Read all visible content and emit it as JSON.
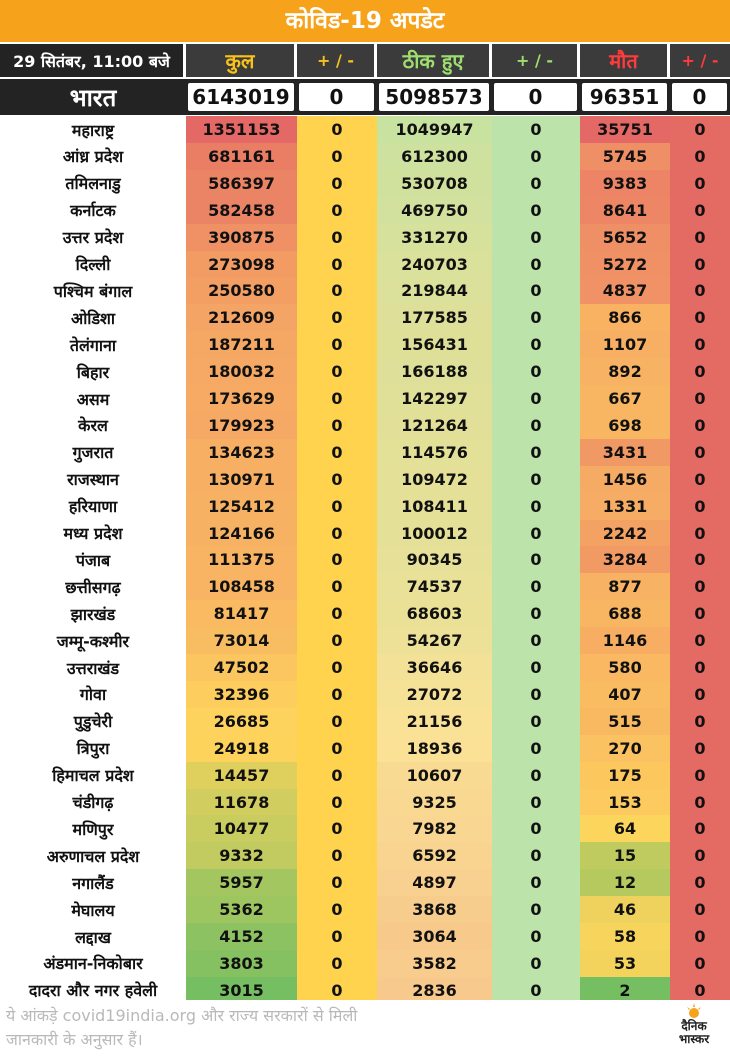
{
  "title": "कोविड-19 अपडेट",
  "header": {
    "date": "29 सितंबर, 11:00 बजे",
    "total": "कुल",
    "total_delta": "+ / -",
    "recovered": "ठीक हुए",
    "recovered_delta": "+ / -",
    "deaths": "मौत",
    "deaths_delta": "+ / -"
  },
  "india": {
    "name": "भारत",
    "total": "6143019",
    "total_delta": "0",
    "recovered": "5098573",
    "recovered_delta": "0",
    "deaths": "96351",
    "deaths_delta": "0"
  },
  "states": [
    {
      "name": "महाराष्ट्र",
      "total": "1351153",
      "total_delta": "0",
      "recovered": "1049947",
      "recovered_delta": "0",
      "deaths": "35751",
      "deaths_delta": "0"
    },
    {
      "name": "आंध्र प्रदेश",
      "total": "681161",
      "total_delta": "0",
      "recovered": "612300",
      "recovered_delta": "0",
      "deaths": "5745",
      "deaths_delta": "0"
    },
    {
      "name": "तमिलनाडु",
      "total": "586397",
      "total_delta": "0",
      "recovered": "530708",
      "recovered_delta": "0",
      "deaths": "9383",
      "deaths_delta": "0"
    },
    {
      "name": "कर्नाटक",
      "total": "582458",
      "total_delta": "0",
      "recovered": "469750",
      "recovered_delta": "0",
      "deaths": "8641",
      "deaths_delta": "0"
    },
    {
      "name": "उत्तर प्रदेश",
      "total": "390875",
      "total_delta": "0",
      "recovered": "331270",
      "recovered_delta": "0",
      "deaths": "5652",
      "deaths_delta": "0"
    },
    {
      "name": "दिल्ली",
      "total": "273098",
      "total_delta": "0",
      "recovered": "240703",
      "recovered_delta": "0",
      "deaths": "5272",
      "deaths_delta": "0"
    },
    {
      "name": "पश्चिम बंगाल",
      "total": "250580",
      "total_delta": "0",
      "recovered": "219844",
      "recovered_delta": "0",
      "deaths": "4837",
      "deaths_delta": "0"
    },
    {
      "name": "ओडिशा",
      "total": "212609",
      "total_delta": "0",
      "recovered": "177585",
      "recovered_delta": "0",
      "deaths": "866",
      "deaths_delta": "0"
    },
    {
      "name": "तेलंगाना",
      "total": "187211",
      "total_delta": "0",
      "recovered": "156431",
      "recovered_delta": "0",
      "deaths": "1107",
      "deaths_delta": "0"
    },
    {
      "name": "बिहार",
      "total": "180032",
      "total_delta": "0",
      "recovered": "166188",
      "recovered_delta": "0",
      "deaths": "892",
      "deaths_delta": "0"
    },
    {
      "name": "असम",
      "total": "173629",
      "total_delta": "0",
      "recovered": "142297",
      "recovered_delta": "0",
      "deaths": "667",
      "deaths_delta": "0"
    },
    {
      "name": "केरल",
      "total": "179923",
      "total_delta": "0",
      "recovered": "121264",
      "recovered_delta": "0",
      "deaths": "698",
      "deaths_delta": "0"
    },
    {
      "name": "गुजरात",
      "total": "134623",
      "total_delta": "0",
      "recovered": "114576",
      "recovered_delta": "0",
      "deaths": "3431",
      "deaths_delta": "0"
    },
    {
      "name": "राजस्थान",
      "total": "130971",
      "total_delta": "0",
      "recovered": "109472",
      "recovered_delta": "0",
      "deaths": "1456",
      "deaths_delta": "0"
    },
    {
      "name": "हरियाणा",
      "total": "125412",
      "total_delta": "0",
      "recovered": "108411",
      "recovered_delta": "0",
      "deaths": "1331",
      "deaths_delta": "0"
    },
    {
      "name": "मध्य प्रदेश",
      "total": "124166",
      "total_delta": "0",
      "recovered": "100012",
      "recovered_delta": "0",
      "deaths": "2242",
      "deaths_delta": "0"
    },
    {
      "name": "पंजाब",
      "total": "111375",
      "total_delta": "0",
      "recovered": "90345",
      "recovered_delta": "0",
      "deaths": "3284",
      "deaths_delta": "0"
    },
    {
      "name": "छत्तीसगढ़",
      "total": "108458",
      "total_delta": "0",
      "recovered": "74537",
      "recovered_delta": "0",
      "deaths": "877",
      "deaths_delta": "0"
    },
    {
      "name": "झारखंड",
      "total": "81417",
      "total_delta": "0",
      "recovered": "68603",
      "recovered_delta": "0",
      "deaths": "688",
      "deaths_delta": "0"
    },
    {
      "name": "जम्मू-कश्मीर",
      "total": "73014",
      "total_delta": "0",
      "recovered": "54267",
      "recovered_delta": "0",
      "deaths": "1146",
      "deaths_delta": "0"
    },
    {
      "name": "उत्तराखंड",
      "total": "47502",
      "total_delta": "0",
      "recovered": "36646",
      "recovered_delta": "0",
      "deaths": "580",
      "deaths_delta": "0"
    },
    {
      "name": "गोवा",
      "total": "32396",
      "total_delta": "0",
      "recovered": "27072",
      "recovered_delta": "0",
      "deaths": "407",
      "deaths_delta": "0"
    },
    {
      "name": "पुडुचेरी",
      "total": "26685",
      "total_delta": "0",
      "recovered": "21156",
      "recovered_delta": "0",
      "deaths": "515",
      "deaths_delta": "0"
    },
    {
      "name": "त्रिपुरा",
      "total": "24918",
      "total_delta": "0",
      "recovered": "18936",
      "recovered_delta": "0",
      "deaths": "270",
      "deaths_delta": "0"
    },
    {
      "name": "हिमाचल प्रदेश",
      "total": "14457",
      "total_delta": "0",
      "recovered": "10607",
      "recovered_delta": "0",
      "deaths": "175",
      "deaths_delta": "0"
    },
    {
      "name": "चंडीगढ़",
      "total": "11678",
      "total_delta": "0",
      "recovered": "9325",
      "recovered_delta": "0",
      "deaths": "153",
      "deaths_delta": "0"
    },
    {
      "name": "मणिपुर",
      "total": "10477",
      "total_delta": "0",
      "recovered": "7982",
      "recovered_delta": "0",
      "deaths": "64",
      "deaths_delta": "0"
    },
    {
      "name": "अरुणाचल प्रदेश",
      "total": "9332",
      "total_delta": "0",
      "recovered": "6592",
      "recovered_delta": "0",
      "deaths": "15",
      "deaths_delta": "0"
    },
    {
      "name": "नगालैंड",
      "total": "5957",
      "total_delta": "0",
      "recovered": "4897",
      "recovered_delta": "0",
      "deaths": "12",
      "deaths_delta": "0"
    },
    {
      "name": "मेघालय",
      "total": "5362",
      "total_delta": "0",
      "recovered": "3868",
      "recovered_delta": "0",
      "deaths": "46",
      "deaths_delta": "0"
    },
    {
      "name": "लद्दाख",
      "total": "4152",
      "total_delta": "0",
      "recovered": "3064",
      "recovered_delta": "0",
      "deaths": "58",
      "deaths_delta": "0"
    },
    {
      "name": "अंडमान-निकोबार",
      "total": "3803",
      "total_delta": "0",
      "recovered": "3582",
      "recovered_delta": "0",
      "deaths": "53",
      "deaths_delta": "0"
    },
    {
      "name": "दादरा और नगर हवेली",
      "total": "3015",
      "total_delta": "0",
      "recovered": "2836",
      "recovered_delta": "0",
      "deaths": "2",
      "deaths_delta": "0"
    }
  ],
  "footer": {
    "source": "ये आंकड़े covid19india.org और राज्य सरकारों से मिली जानकारी के अनुसार हैं।",
    "logo_line1": "दैनिक",
    "logo_line2": "भास्कर"
  },
  "colors": {
    "title_bg": "#f7a21b",
    "header_bg": "#232323",
    "delta_total": "#ffd34d",
    "delta_recovered": "#bbe3aa",
    "delta_deaths": "#e46a64"
  }
}
